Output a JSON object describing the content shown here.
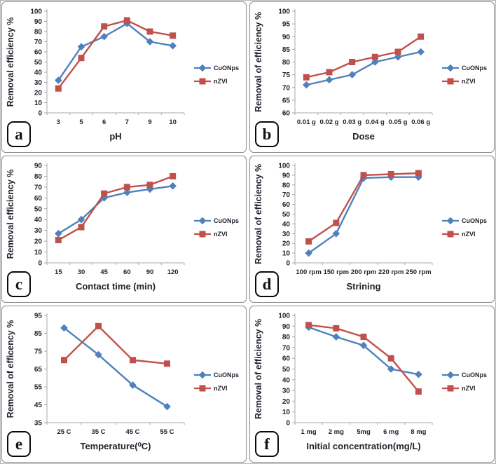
{
  "figure": {
    "description": "Six-panel line chart figure comparing removal efficiency of CuONps and nZVI nanoparticles",
    "panel_letters": [
      "a",
      "b",
      "c",
      "d",
      "e",
      "f"
    ]
  },
  "colors": {
    "cuonps_series": "#4F81BD",
    "nzvi_series": "#C0504D",
    "axis_line": "#a8a8a8",
    "text": "#22222e",
    "panel_border": "#8c8c8c"
  },
  "chart_data": [
    {
      "type": "line",
      "panel_label": "a",
      "xlabel": "pH",
      "ylabel": "Removal efficiency %",
      "categories": [
        "3",
        "5",
        "6",
        "7",
        "9",
        "10"
      ],
      "ylim": [
        0,
        100
      ],
      "ystep": 10,
      "grid": false,
      "legend_position": "right",
      "series": [
        {
          "name": "CuONps",
          "color": "#4F81BD",
          "marker": "diamond",
          "values": [
            32,
            65,
            75,
            88,
            70,
            66
          ]
        },
        {
          "name": "nZVI",
          "color": "#C0504D",
          "marker": "square",
          "values": [
            24,
            54,
            85,
            91,
            80,
            76
          ]
        }
      ]
    },
    {
      "type": "line",
      "panel_label": "b",
      "xlabel": "Dose",
      "ylabel": "Removal of efficiency %",
      "categories": [
        "0.01 g",
        "0.02 g",
        "0.03 g",
        "0.04 g",
        "0.05 g",
        "0.06 g"
      ],
      "ylim": [
        60,
        100
      ],
      "ystep": 5,
      "grid": false,
      "legend_position": "right",
      "series": [
        {
          "name": "CuONps",
          "color": "#4F81BD",
          "marker": "diamond",
          "values": [
            71,
            73,
            75,
            80,
            82,
            84
          ]
        },
        {
          "name": "nZVI",
          "color": "#C0504D",
          "marker": "square",
          "values": [
            74,
            76,
            80,
            82,
            84,
            90
          ]
        }
      ]
    },
    {
      "type": "line",
      "panel_label": "c",
      "xlabel": "Contact time (min)",
      "ylabel": "Removal efficiency %",
      "categories": [
        "15",
        "30",
        "45",
        "60",
        "90",
        "120"
      ],
      "ylim": [
        0,
        90
      ],
      "ystep": 10,
      "grid": false,
      "legend_position": "right",
      "series": [
        {
          "name": "CuONps",
          "color": "#4F81BD",
          "marker": "diamond",
          "values": [
            27,
            40,
            60,
            65,
            68,
            71
          ]
        },
        {
          "name": "nZVI",
          "color": "#C0504D",
          "marker": "square",
          "values": [
            21,
            33,
            64,
            70,
            72,
            80
          ]
        }
      ]
    },
    {
      "type": "line",
      "panel_label": "d",
      "xlabel": "Strining",
      "ylabel": "Removal of efficiency %",
      "categories": [
        "100 rpm",
        "150 rpm",
        "200 rpm",
        "220 rpm",
        "250 rpm"
      ],
      "ylim": [
        0,
        100
      ],
      "ystep": 10,
      "grid": false,
      "legend_position": "right",
      "series": [
        {
          "name": "CuONps",
          "color": "#4F81BD",
          "marker": "diamond",
          "values": [
            10,
            30,
            87,
            88,
            88
          ]
        },
        {
          "name": "nZVI",
          "color": "#C0504D",
          "marker": "square",
          "values": [
            22,
            41,
            90,
            91,
            92
          ]
        }
      ]
    },
    {
      "type": "line",
      "panel_label": "e",
      "xlabel": "Temperature(⁰C)",
      "ylabel": "Removal of efficency %",
      "categories": [
        "25 C",
        "35 C",
        "45 C",
        "55 C"
      ],
      "ylim": [
        35,
        95
      ],
      "ystep": 10,
      "grid": false,
      "legend_position": "right",
      "series": [
        {
          "name": "CuONps",
          "color": "#4F81BD",
          "marker": "diamond",
          "values": [
            88,
            73,
            56,
            44
          ]
        },
        {
          "name": "nZVI",
          "color": "#C0504D",
          "marker": "square",
          "values": [
            70,
            89,
            70,
            68
          ]
        }
      ]
    },
    {
      "type": "line",
      "panel_label": "f",
      "xlabel": "Initial concentration(mg/L)",
      "ylabel": "Removal of efficiency %",
      "categories": [
        "1 mg",
        "2 mg",
        "5mg",
        "6 mg",
        "8 mg"
      ],
      "ylim": [
        0,
        100
      ],
      "ystep": 10,
      "grid": false,
      "legend_position": "right",
      "series": [
        {
          "name": "CuONps",
          "color": "#4F81BD",
          "marker": "diamond",
          "values": [
            89,
            80,
            72,
            50,
            45
          ]
        },
        {
          "name": "nZVI",
          "color": "#C0504D",
          "marker": "square",
          "values": [
            91,
            88,
            80,
            60,
            29
          ]
        }
      ]
    }
  ]
}
